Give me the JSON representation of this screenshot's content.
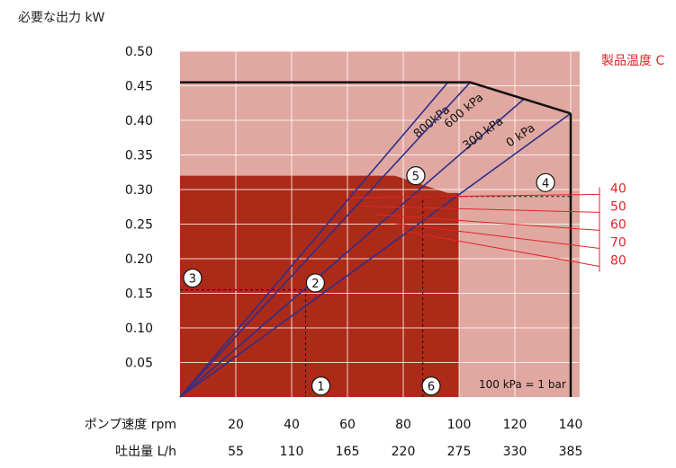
{
  "chart_data": {
    "type": "line",
    "title": "必要な出力 kW",
    "xlabel_rows": [
      {
        "label": "ポンプ速度 rpm",
        "ticks": [
          "20",
          "40",
          "60",
          "80",
          "100",
          "120",
          "140"
        ]
      },
      {
        "label": "吐出量 L/h",
        "ticks": [
          "55",
          "110",
          "165",
          "220",
          "275",
          "330",
          "385"
        ]
      }
    ],
    "x_range": [
      0,
      140
    ],
    "ylim": [
      0,
      0.5
    ],
    "y_ticks": [
      "0.50",
      "0.45",
      "0.40",
      "0.35",
      "0.30",
      "0.25",
      "0.20",
      "0.15",
      "0.10",
      "0.05"
    ],
    "grid": true,
    "regions": {
      "dark_region": {
        "x_max": 100,
        "y_max": 0.32,
        "color": "#ac2a18"
      },
      "light_region_color": "#e0a8a0"
    },
    "power_limit": {
      "points": [
        [
          0,
          0.455
        ],
        [
          104,
          0.455
        ],
        [
          140,
          0.41
        ]
      ],
      "right_edge_x": 140
    },
    "pressure_lines": [
      {
        "name": "800kPa",
        "end": [
          96,
          0.455
        ]
      },
      {
        "name": "600 kPa",
        "end": [
          104,
          0.455
        ]
      },
      {
        "name": "300 kPa",
        "end": [
          123,
          0.43
        ]
      },
      {
        "name": "0 kPa",
        "end": [
          140,
          0.41
        ]
      }
    ],
    "temperature": {
      "label": "製品温度 C",
      "levels": [
        {
          "value": "40",
          "y": 0.293
        },
        {
          "value": "50",
          "y": 0.267
        },
        {
          "value": "60",
          "y": 0.241
        },
        {
          "value": "70",
          "y": 0.215
        },
        {
          "value": "80",
          "y": 0.189
        }
      ],
      "color": "#e0262a"
    },
    "markers": [
      {
        "label": "1",
        "x": 50.5,
        "y": 0.016
      },
      {
        "label": "2",
        "x": 48.5,
        "y": 0.165
      },
      {
        "label": "3",
        "x": 4.5,
        "y": 0.172
      },
      {
        "label": "4",
        "x": 131,
        "y": 0.31
      },
      {
        "label": "5",
        "x": 84.5,
        "y": 0.32
      },
      {
        "label": "6",
        "x": 90,
        "y": 0.016
      }
    ],
    "example_path": {
      "points": [
        [
          0,
          0.155
        ],
        [
          45,
          0.155
        ],
        [
          45,
          0
        ]
      ],
      "points2": [
        [
          87,
          0
        ],
        [
          87,
          0.29
        ],
        [
          140,
          0.29
        ]
      ]
    },
    "annotation": "100 kPa = 1 bar"
  }
}
